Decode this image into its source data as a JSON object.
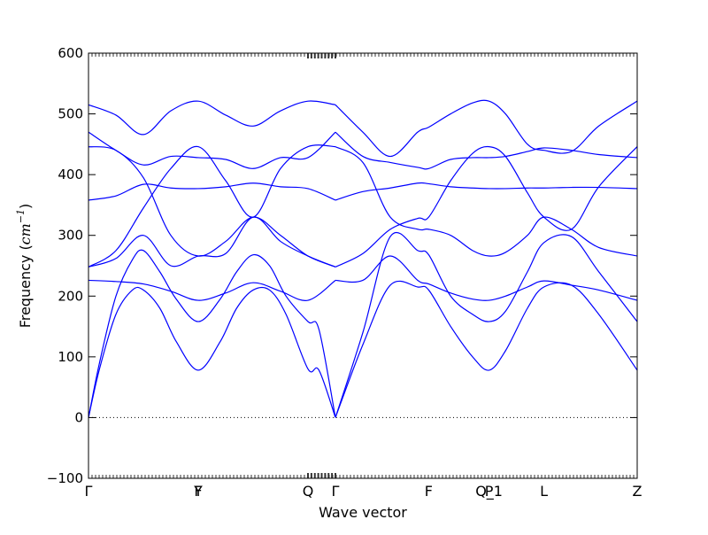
{
  "chart_data": {
    "type": "line",
    "title": "",
    "xlabel": "Wave vector",
    "ylabel": "Frequency (",
    "ylabel_math": "cm",
    "ylabel_exp": "−1",
    "ylabel_close": ")",
    "ylim": [
      -100,
      600
    ],
    "yticks": [
      -100,
      0,
      100,
      200,
      300,
      400,
      500,
      600
    ],
    "ytick_labels": [
      "−100",
      "0",
      "100",
      "200",
      "300",
      "400",
      "500",
      "600"
    ],
    "xlim": [
      0,
      1
    ],
    "high_symmetry_points": [
      {
        "label": "Γ",
        "x": 0.0
      },
      {
        "label": "Y",
        "x": 0.2
      },
      {
        "label": "F",
        "x": 0.2
      },
      {
        "label": "Q",
        "x": 0.4
      },
      {
        "label": "Γ",
        "x": 0.45
      },
      {
        "label": "F",
        "x": 0.62
      },
      {
        "label": "P",
        "x": 0.73
      },
      {
        "label": "Q_1",
        "x": 0.73
      },
      {
        "label": "L",
        "x": 0.83
      },
      {
        "label": "Z",
        "x": 1.0
      }
    ],
    "zero_line": true,
    "line_color": "#0000ff",
    "series": [
      {
        "x": [
          0,
          0.02,
          0.05,
          0.08,
          0.1,
          0.13,
          0.16,
          0.2,
          0.24,
          0.27,
          0.3,
          0.33,
          0.36,
          0.4,
          0.42,
          0.45
        ],
        "values": [
          0,
          80,
          170,
          210,
          210,
          180,
          125,
          78,
          125,
          180,
          210,
          210,
          170,
          80,
          78,
          0
        ]
      },
      {
        "x": [
          0,
          0.02,
          0.05,
          0.08,
          0.1,
          0.13,
          0.16,
          0.2,
          0.24,
          0.27,
          0.3,
          0.33,
          0.36,
          0.4,
          0.42,
          0.45
        ],
        "values": [
          0,
          90,
          200,
          260,
          275,
          240,
          195,
          158,
          195,
          240,
          268,
          250,
          200,
          158,
          145,
          0
        ]
      },
      {
        "x": [
          0,
          0.05,
          0.1,
          0.15,
          0.2,
          0.25,
          0.3,
          0.35,
          0.4,
          0.45
        ],
        "values": [
          226,
          224,
          220,
          208,
          193,
          205,
          222,
          208,
          193,
          226
        ]
      },
      {
        "x": [
          0,
          0.05,
          0.1,
          0.15,
          0.2,
          0.25,
          0.3,
          0.35,
          0.4,
          0.45
        ],
        "values": [
          248,
          262,
          300,
          250,
          266,
          270,
          330,
          290,
          266,
          248
        ]
      },
      {
        "x": [
          0,
          0.05,
          0.1,
          0.15,
          0.2,
          0.25,
          0.3,
          0.35,
          0.4,
          0.45
        ],
        "values": [
          248,
          275,
          345,
          410,
          446,
          390,
          330,
          410,
          446,
          446
        ]
      },
      {
        "x": [
          0,
          0.05,
          0.1,
          0.15,
          0.2,
          0.25,
          0.3,
          0.35,
          0.4,
          0.45
        ],
        "values": [
          358,
          365,
          384,
          378,
          377,
          380,
          386,
          380,
          377,
          358
        ]
      },
      {
        "x": [
          0,
          0.05,
          0.1,
          0.15,
          0.2,
          0.25,
          0.3,
          0.35,
          0.4,
          0.45
        ],
        "values": [
          446,
          440,
          395,
          300,
          266,
          290,
          330,
          300,
          266,
          248
        ]
      },
      {
        "x": [
          0,
          0.05,
          0.1,
          0.15,
          0.2,
          0.25,
          0.3,
          0.35,
          0.4,
          0.45
        ],
        "values": [
          470,
          440,
          416,
          430,
          428,
          425,
          410,
          428,
          428,
          470
        ]
      },
      {
        "x": [
          0,
          0.05,
          0.1,
          0.15,
          0.2,
          0.25,
          0.3,
          0.35,
          0.4,
          0.45
        ],
        "values": [
          515,
          498,
          466,
          505,
          521,
          498,
          480,
          505,
          521,
          515
        ]
      },
      {
        "x": [
          0.45,
          0.5,
          0.55,
          0.6,
          0.62,
          0.66,
          0.7,
          0.73,
          0.76,
          0.8,
          0.83,
          0.88,
          0.93,
          1.0
        ],
        "values": [
          0,
          120,
          218,
          215,
          210,
          150,
          100,
          78,
          110,
          180,
          215,
          218,
          170,
          78
        ]
      },
      {
        "x": [
          0.45,
          0.5,
          0.55,
          0.6,
          0.62,
          0.66,
          0.7,
          0.73,
          0.76,
          0.8,
          0.83,
          0.88,
          0.93,
          1.0
        ],
        "values": [
          0,
          140,
          298,
          275,
          268,
          200,
          170,
          158,
          175,
          240,
          288,
          298,
          240,
          158
        ]
      },
      {
        "x": [
          0.45,
          0.5,
          0.55,
          0.6,
          0.62,
          0.66,
          0.7,
          0.73,
          0.76,
          0.8,
          0.83,
          0.88,
          0.93,
          1.0
        ],
        "values": [
          226,
          226,
          266,
          226,
          220,
          205,
          195,
          193,
          200,
          215,
          225,
          218,
          210,
          193
        ]
      },
      {
        "x": [
          0.45,
          0.5,
          0.55,
          0.6,
          0.62,
          0.66,
          0.7,
          0.73,
          0.76,
          0.8,
          0.83,
          0.88,
          0.93,
          1.0
        ],
        "values": [
          248,
          270,
          310,
          328,
          330,
          390,
          435,
          446,
          430,
          370,
          330,
          310,
          380,
          446
        ]
      },
      {
        "x": [
          0.45,
          0.5,
          0.55,
          0.6,
          0.62,
          0.66,
          0.7,
          0.73,
          0.76,
          0.8,
          0.83,
          0.88,
          0.93,
          1.0
        ],
        "values": [
          446,
          420,
          330,
          310,
          310,
          300,
          275,
          266,
          272,
          300,
          330,
          310,
          280,
          266
        ]
      },
      {
        "x": [
          0.45,
          0.5,
          0.55,
          0.6,
          0.62,
          0.66,
          0.7,
          0.73,
          0.76,
          0.8,
          0.83,
          0.88,
          0.93,
          1.0
        ],
        "values": [
          358,
          372,
          378,
          386,
          385,
          380,
          378,
          377,
          377,
          378,
          378,
          379,
          379,
          377
        ]
      },
      {
        "x": [
          0.45,
          0.5,
          0.55,
          0.6,
          0.62,
          0.66,
          0.7,
          0.73,
          0.76,
          0.8,
          0.83,
          0.88,
          0.93,
          1.0
        ],
        "values": [
          470,
          430,
          420,
          412,
          410,
          425,
          428,
          428,
          430,
          438,
          444,
          440,
          433,
          428
        ]
      },
      {
        "x": [
          0.45,
          0.5,
          0.55,
          0.6,
          0.62,
          0.66,
          0.7,
          0.73,
          0.76,
          0.8,
          0.83,
          0.88,
          0.93,
          1.0
        ],
        "values": [
          515,
          470,
          430,
          470,
          478,
          500,
          518,
          521,
          500,
          450,
          440,
          438,
          480,
          521
        ]
      }
    ]
  }
}
